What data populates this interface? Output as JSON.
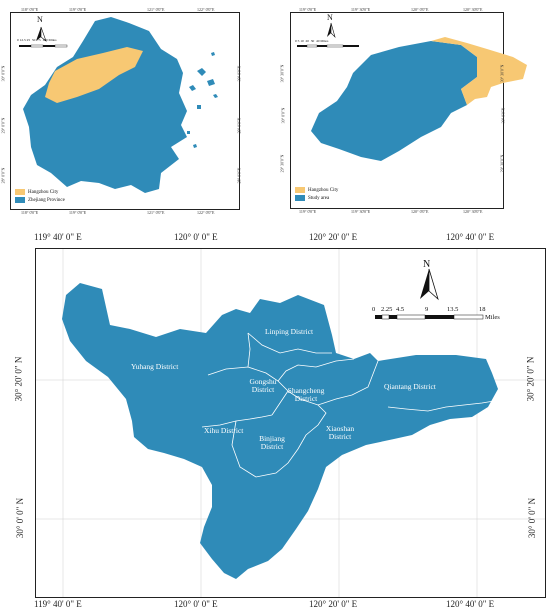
{
  "colors": {
    "province": "#2f8bb8",
    "city": "#f7c873",
    "line": "#ffffff",
    "border": "#222222"
  },
  "panel_a": {
    "top_ticks": [
      "118° 0'0\"E",
      "119° 0'0\"E",
      "121° 0'0\"E",
      "122° 0'0\"E"
    ],
    "bottom_ticks": [
      "118° 0'0\"E",
      "119° 0'0\"E",
      "121° 0'0\"E",
      "122° 0'0\"E"
    ],
    "left_ticks": [
      "30° 0'0\"N",
      "29° 0'0\"N",
      "28° 0'0\"N"
    ],
    "right_ticks": [
      "30° 0'0\"N",
      "29° 0'0\"N",
      "28° 0'0\"N"
    ],
    "north": "N",
    "scale_labels": [
      "0",
      "12.5",
      "25",
      "50",
      "75",
      "100",
      "Miles"
    ],
    "legend": [
      {
        "label": "Hangzhou City",
        "color": "#f7c873"
      },
      {
        "label": "Zhejiang Province",
        "color": "#2f8bb8"
      }
    ]
  },
  "panel_b": {
    "top_ticks": [
      "119° 0'0\"E",
      "119° 30'0\"E",
      "120° 0'0\"E",
      "120° 30'0\"E"
    ],
    "bottom_ticks": [
      "119° 0'0\"E",
      "119° 30'0\"E",
      "120° 0'0\"E",
      "120° 30'0\"E"
    ],
    "left_ticks": [
      "30° 30'0\"N",
      "30° 0'0\"N",
      "29° 30'0\"N"
    ],
    "right_ticks": [
      "30° 30'0\"N",
      "30° 0'0\"N",
      "29° 30'0\"N"
    ],
    "north": "N",
    "scale_labels": [
      "0",
      "5",
      "10",
      "20",
      "30",
      "40",
      "Miles"
    ],
    "legend": [
      {
        "label": "Hangzhou City",
        "color": "#f7c873"
      },
      {
        "label": "Study area",
        "color": "#2f8bb8"
      }
    ]
  },
  "panel_c": {
    "top_ticks": [
      "119° 40' 0\" E",
      "120° 0' 0\" E",
      "120° 20' 0\" E",
      "120° 40' 0\" E"
    ],
    "bottom_ticks": [
      "119° 40' 0\" E",
      "120° 0' 0\" E",
      "120° 20' 0\" E",
      "120° 40' 0\" E"
    ],
    "left_ticks": [
      "30° 20' 0\" N",
      "30° 0' 0\" N"
    ],
    "right_ticks": [
      "30° 20' 0\" N",
      "30° 0' 0\" N"
    ],
    "north": "N",
    "scale_labels": [
      "0",
      "2.25",
      "4.5",
      "9",
      "13.5",
      "18",
      "Miles"
    ],
    "districts": {
      "linping": "Linping District",
      "yuhang": "Yuhang District",
      "gongshu": "Gongshu District",
      "shangcheng": "Shangcheng District",
      "qiantang": "Qiantang District",
      "xihu": "Xihu District",
      "binjiang": "Binjiang District",
      "xiaoshan": "Xiaoshan District"
    }
  }
}
